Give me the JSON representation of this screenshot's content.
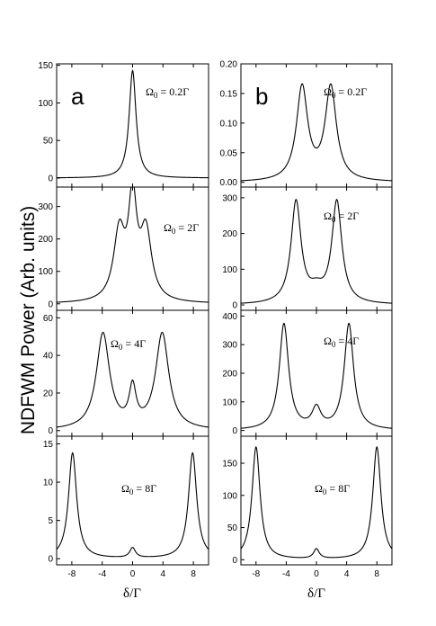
{
  "figure": {
    "ylabel": "NDFWM Power (Arb. units)",
    "xlabel": "δ/Γ",
    "columns": [
      {
        "label": "a"
      },
      {
        "label": "b"
      }
    ]
  },
  "chart_data": [
    {
      "type": "line",
      "column": 0,
      "row": 0,
      "panel_label": "a",
      "annotation": "Ω0 = 0.2Γ",
      "annotation_main": "Ω",
      "annotation_sub": "0",
      "annotation_rest": " = 0.2Γ",
      "xlim": [
        -10,
        10
      ],
      "ylim": [
        -12,
        152
      ],
      "xticks": [
        -8,
        -4,
        0,
        4,
        8
      ],
      "yticks": [
        0,
        50,
        100,
        150
      ],
      "ytick_labels": [
        "0",
        "50",
        "100",
        "150"
      ],
      "model": {
        "peaks": [
          {
            "x": 0,
            "h": 143,
            "w": 0.55
          }
        ],
        "baseline": 0
      }
    },
    {
      "type": "line",
      "column": 0,
      "row": 1,
      "annotation": "Ω0 = 2Γ",
      "annotation_main": "Ω",
      "annotation_sub": "0",
      "annotation_rest": " = 2Γ",
      "xlim": [
        -10,
        10
      ],
      "ylim": [
        -20,
        360
      ],
      "xticks": [
        -8,
        -4,
        0,
        4,
        8
      ],
      "yticks": [
        0,
        100,
        200,
        300
      ],
      "ytick_labels": [
        "0",
        "100",
        "200",
        "300"
      ],
      "model": {
        "peaks": [
          {
            "x": -1.75,
            "h": 210,
            "w": 0.9
          },
          {
            "x": 0,
            "h": 300,
            "w": 0.65
          },
          {
            "x": 1.75,
            "h": 210,
            "w": 0.9
          }
        ],
        "baseline": 0
      }
    },
    {
      "type": "line",
      "column": 0,
      "row": 2,
      "annotation": "Ω0 = 4Γ",
      "annotation_main": "Ω",
      "annotation_sub": "0",
      "annotation_rest": " = 4Γ",
      "xlim": [
        -10,
        10
      ],
      "ylim": [
        -3,
        64
      ],
      "xticks": [
        -8,
        -4,
        0,
        4,
        8
      ],
      "yticks": [
        0,
        20,
        40,
        60
      ],
      "ytick_labels": [
        "0",
        "20",
        "40",
        "60"
      ],
      "model": {
        "peaks": [
          {
            "x": -3.9,
            "h": 51,
            "w": 1.05
          },
          {
            "x": 0,
            "h": 20,
            "w": 0.55
          },
          {
            "x": 3.9,
            "h": 51,
            "w": 1.05
          }
        ],
        "baseline": 0
      }
    },
    {
      "type": "line",
      "column": 0,
      "row": 3,
      "annotation": "Ω0 = 8Γ",
      "annotation_main": "Ω",
      "annotation_sub": "0",
      "annotation_rest": " = 8Γ",
      "xlim": [
        -10,
        10
      ],
      "ylim": [
        -0.8,
        16
      ],
      "xticks": [
        -8,
        -4,
        0,
        4,
        8
      ],
      "yticks": [
        0,
        5,
        10,
        15
      ],
      "ytick_labels": [
        "0",
        "5",
        "10",
        "15"
      ],
      "model": {
        "peaks": [
          {
            "x": -7.9,
            "h": 13.8,
            "w": 0.65
          },
          {
            "x": 0,
            "h": 1.3,
            "w": 0.45
          },
          {
            "x": 7.9,
            "h": 13.8,
            "w": 0.65
          }
        ],
        "baseline": 0
      }
    },
    {
      "type": "line",
      "column": 1,
      "row": 0,
      "panel_label": "b",
      "annotation": "Ω0 = 0.2Γ",
      "annotation_main": "Ω",
      "annotation_sub": "0",
      "annotation_rest": " = 0.2Γ",
      "xlim": [
        -10,
        10
      ],
      "ylim": [
        -0.008,
        0.2
      ],
      "xticks": [
        -8,
        -4,
        0,
        4,
        8
      ],
      "yticks": [
        0,
        0.05,
        0.1,
        0.15,
        0.2
      ],
      "ytick_labels": [
        "0.00",
        "0.05",
        "0.10",
        "0.15",
        "0.20"
      ],
      "model": {
        "peaks": [
          {
            "x": -1.9,
            "h": 0.158,
            "w": 0.9
          },
          {
            "x": 1.9,
            "h": 0.158,
            "w": 0.9
          }
        ],
        "baseline": 0
      }
    },
    {
      "type": "line",
      "column": 1,
      "row": 1,
      "annotation": "Ω0 = 2Γ",
      "annotation_main": "Ω",
      "annotation_sub": "0",
      "annotation_rest": " = 2Γ",
      "xlim": [
        -10,
        10
      ],
      "ylim": [
        -15,
        330
      ],
      "xticks": [
        -8,
        -4,
        0,
        4,
        8
      ],
      "yticks": [
        0,
        100,
        200,
        300
      ],
      "ytick_labels": [
        "0",
        "100",
        "200",
        "300"
      ],
      "model": {
        "peaks": [
          {
            "x": -2.7,
            "h": 285,
            "w": 0.8
          },
          {
            "x": 0,
            "h": 30,
            "w": 1.1
          },
          {
            "x": 2.7,
            "h": 285,
            "w": 0.8
          }
        ],
        "baseline": 0
      }
    },
    {
      "type": "line",
      "column": 1,
      "row": 2,
      "annotation": "Ω0 = 4Γ",
      "annotation_main": "Ω",
      "annotation_sub": "0",
      "annotation_rest": " = 4Γ",
      "xlim": [
        -10,
        10
      ],
      "ylim": [
        -20,
        420
      ],
      "xticks": [
        -8,
        -4,
        0,
        4,
        8
      ],
      "yticks": [
        0,
        100,
        200,
        300,
        400
      ],
      "ytick_labels": [
        "0",
        "100",
        "200",
        "300",
        "400"
      ],
      "model": {
        "peaks": [
          {
            "x": -4.3,
            "h": 370,
            "w": 0.75
          },
          {
            "x": 0,
            "h": 70,
            "w": 0.7
          },
          {
            "x": 4.3,
            "h": 370,
            "w": 0.75
          }
        ],
        "baseline": 0
      }
    },
    {
      "type": "line",
      "column": 1,
      "row": 3,
      "annotation": "Ω0 = 8Γ",
      "annotation_main": "Ω",
      "annotation_sub": "0",
      "annotation_rest": " = 8Γ",
      "xlim": [
        -10,
        10
      ],
      "ylim": [
        -8,
        192
      ],
      "xticks": [
        -8,
        -4,
        0,
        4,
        8
      ],
      "yticks": [
        0,
        50,
        100,
        150
      ],
      "ytick_labels": [
        "0",
        "50",
        "100",
        "150"
      ],
      "model": {
        "peaks": [
          {
            "x": -8.0,
            "h": 175,
            "w": 0.65
          },
          {
            "x": 0,
            "h": 15,
            "w": 0.45
          },
          {
            "x": 8.0,
            "h": 175,
            "w": 0.65
          }
        ],
        "baseline": 0
      }
    }
  ]
}
